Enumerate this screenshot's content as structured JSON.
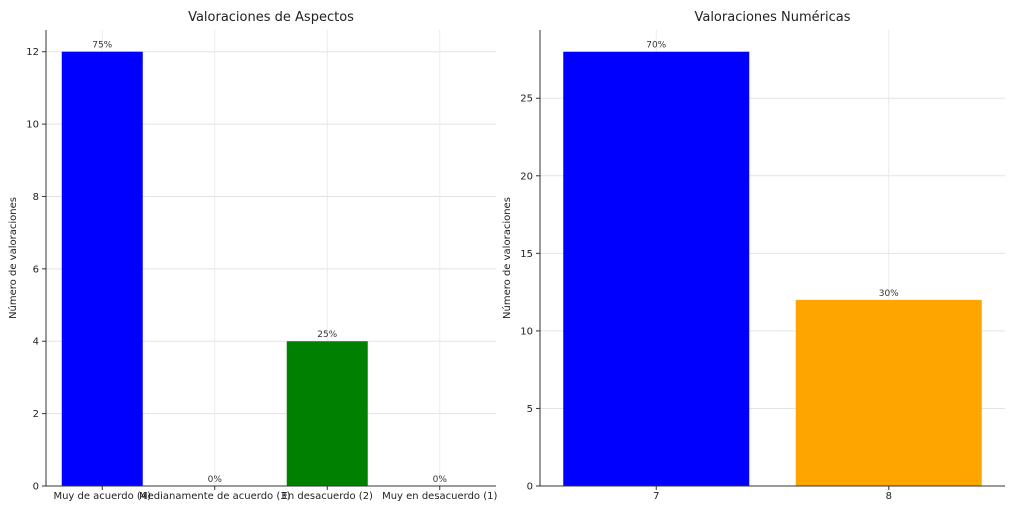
{
  "chart_data": [
    {
      "type": "bar",
      "title": "Valoraciones de Aspectos",
      "xlabel": "",
      "ylabel": "Número de valoraciones",
      "categories": [
        "Muy de acuerdo (4)",
        "Medianamente de acuerdo (3)",
        "En desacuerdo (2)",
        "Muy en desacuerdo (1)"
      ],
      "values": [
        12,
        0,
        4,
        0
      ],
      "data_labels": [
        "75%",
        "0%",
        "25%",
        "0%"
      ],
      "colors": [
        "#0000ff",
        "#0000ff",
        "#008000",
        "#008000"
      ],
      "ylim": [
        0,
        12.6
      ],
      "yticks": [
        0,
        2,
        4,
        6,
        8,
        10,
        12
      ],
      "grid": true
    },
    {
      "type": "bar",
      "title": "Valoraciones Numéricas",
      "xlabel": "",
      "ylabel": "Número de valoraciones",
      "categories": [
        "7",
        "8"
      ],
      "values": [
        28,
        12
      ],
      "data_labels": [
        "70%",
        "30%"
      ],
      "colors": [
        "#0000ff",
        "#ffa500"
      ],
      "ylim": [
        0,
        29.4
      ],
      "yticks": [
        0,
        5,
        10,
        15,
        20,
        25
      ],
      "grid": true
    }
  ]
}
